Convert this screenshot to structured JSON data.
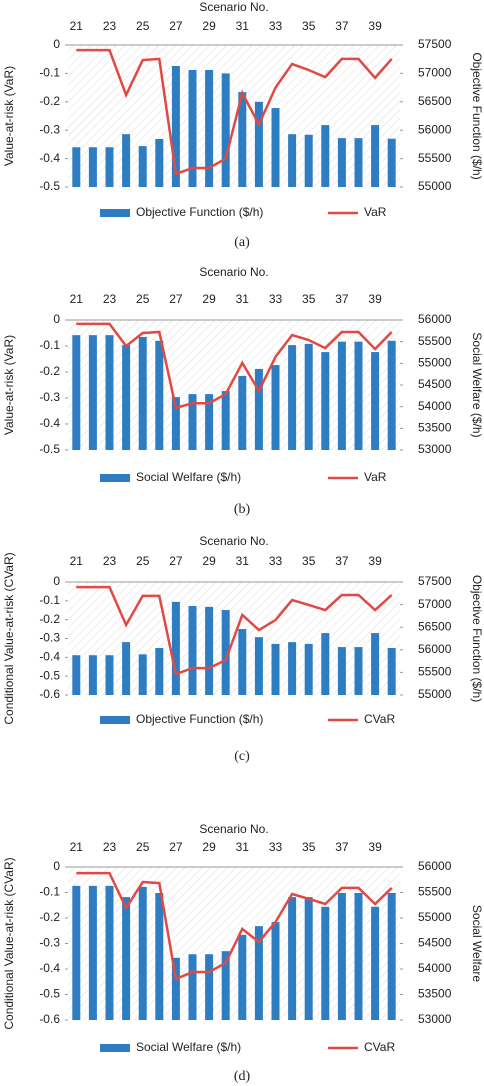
{
  "chart_data": [
    {
      "type": "combo",
      "title": "Scenario No.",
      "ylabel": "Value-at-risk (VaR)",
      "y2label": "Objective Function ($/h)",
      "caption": "(a)",
      "categories": [
        21,
        null,
        23,
        null,
        25,
        null,
        27,
        null,
        29,
        null,
        31,
        null,
        33,
        null,
        35,
        null,
        37,
        null,
        39,
        null
      ],
      "series": [
        {
          "name": "Objective Function ($/h)",
          "type": "bar",
          "axis": "y2",
          "color": "#2e7dc2",
          "values": [
            55700,
            55700,
            55700,
            55930,
            55720,
            55845,
            57130,
            57060,
            57060,
            57000,
            56670,
            56500,
            56390,
            55930,
            55920,
            56090,
            55860,
            55860,
            56090,
            55850
          ]
        },
        {
          "name": "VaR",
          "type": "line",
          "color": "#e04a44",
          "values": [
            -0.018,
            -0.018,
            -0.018,
            -0.176,
            -0.053,
            -0.049,
            -0.454,
            -0.433,
            -0.433,
            -0.4,
            -0.169,
            -0.28,
            -0.15,
            -0.067,
            -0.088,
            -0.113,
            -0.049,
            -0.049,
            -0.116,
            -0.049
          ]
        }
      ],
      "ylim": [
        -0.5,
        0
      ],
      "yticks": [
        0,
        -0.1,
        -0.2,
        -0.3,
        -0.4,
        -0.5
      ],
      "y2lim": [
        55000,
        57500
      ],
      "y2ticks": [
        57500,
        57000,
        56500,
        56000,
        55500,
        55000
      ]
    },
    {
      "type": "combo",
      "title": "Scenario No.",
      "ylabel": "Value-at-risk (VaR)",
      "y2label": "Social Welfare ($/h)",
      "caption": "(b)",
      "categories": [
        21,
        null,
        23,
        null,
        25,
        null,
        27,
        null,
        29,
        null,
        31,
        null,
        33,
        null,
        35,
        null,
        37,
        null,
        39,
        null
      ],
      "series": [
        {
          "name": "Social Welfare ($/h)",
          "type": "bar",
          "axis": "y2",
          "color": "#2e7dc2",
          "values": [
            55650,
            55650,
            55650,
            55420,
            55610,
            55520,
            54220,
            54290,
            54290,
            54360,
            54710,
            54870,
            54960,
            55420,
            55450,
            55260,
            55500,
            55500,
            55260,
            55520
          ]
        },
        {
          "name": "VaR",
          "type": "line",
          "color": "#e04a44",
          "values": [
            -0.015,
            -0.015,
            -0.015,
            -0.1,
            -0.05,
            -0.046,
            -0.338,
            -0.32,
            -0.32,
            -0.285,
            -0.165,
            -0.273,
            -0.142,
            -0.058,
            -0.077,
            -0.108,
            -0.046,
            -0.046,
            -0.112,
            -0.046
          ]
        }
      ],
      "ylim": [
        -0.5,
        0
      ],
      "yticks": [
        0,
        -0.1,
        -0.2,
        -0.3,
        -0.4,
        -0.5
      ],
      "y2lim": [
        53000,
        56000
      ],
      "y2ticks": [
        56000,
        55500,
        55000,
        54500,
        54000,
        53500,
        53000
      ]
    },
    {
      "type": "combo",
      "title": "Scenario No.",
      "ylabel": "Conditional Value-at-risk (CVaR)",
      "y2label": "Objective Function ($/h)",
      "caption": "(c)",
      "categories": [
        21,
        null,
        23,
        null,
        25,
        null,
        27,
        null,
        29,
        null,
        31,
        null,
        33,
        null,
        35,
        null,
        37,
        null,
        39,
        null
      ],
      "series": [
        {
          "name": "Objective Function ($/h)",
          "type": "bar",
          "axis": "y2",
          "color": "#2e7dc2",
          "values": [
            55880,
            55880,
            55880,
            56170,
            55900,
            56040,
            57060,
            56970,
            56950,
            56880,
            56460,
            56280,
            56130,
            56170,
            56130,
            56370,
            56060,
            56060,
            56370,
            56040
          ]
        },
        {
          "name": "CVaR",
          "type": "line",
          "color": "#e04a44",
          "values": [
            -0.027,
            -0.027,
            -0.027,
            -0.228,
            -0.074,
            -0.074,
            -0.489,
            -0.457,
            -0.457,
            -0.414,
            -0.175,
            -0.255,
            -0.202,
            -0.096,
            -0.122,
            -0.149,
            -0.069,
            -0.069,
            -0.149,
            -0.069
          ]
        }
      ],
      "ylim": [
        -0.6,
        0
      ],
      "yticks": [
        0,
        -0.1,
        -0.2,
        -0.3,
        -0.4,
        -0.5,
        -0.6
      ],
      "y2lim": [
        55000,
        57500
      ],
      "y2ticks": [
        57500,
        57000,
        56500,
        56000,
        55500,
        55000
      ]
    },
    {
      "type": "combo",
      "title": "Scenario No.",
      "ylabel": "Conditional Value-at-risk (CVaR)",
      "y2label": "Social Welfare",
      "caption": "(d)",
      "categories": [
        21,
        null,
        23,
        null,
        25,
        null,
        27,
        null,
        29,
        null,
        31,
        null,
        33,
        null,
        35,
        null,
        37,
        null,
        39,
        null
      ],
      "series": [
        {
          "name": "Social Welfare ($/h)",
          "type": "bar",
          "axis": "y2",
          "color": "#2e7dc2",
          "values": [
            55630,
            55630,
            55630,
            55410,
            55610,
            55490,
            54220,
            54290,
            54290,
            54350,
            54670,
            54840,
            54920,
            55410,
            55410,
            55220,
            55490,
            55490,
            55220,
            55490
          ]
        },
        {
          "name": "CVaR",
          "type": "line",
          "color": "#e04a44",
          "values": [
            -0.024,
            -0.024,
            -0.024,
            -0.161,
            -0.059,
            -0.063,
            -0.439,
            -0.412,
            -0.412,
            -0.376,
            -0.243,
            -0.294,
            -0.216,
            -0.106,
            -0.125,
            -0.145,
            -0.082,
            -0.082,
            -0.145,
            -0.082
          ]
        }
      ],
      "ylim": [
        -0.6,
        0
      ],
      "yticks": [
        0,
        -0.1,
        -0.2,
        -0.3,
        -0.4,
        -0.5,
        -0.6
      ],
      "y2lim": [
        53000,
        56000
      ],
      "y2ticks": [
        56000,
        55500,
        55000,
        54500,
        54000,
        53500,
        53000
      ]
    }
  ]
}
